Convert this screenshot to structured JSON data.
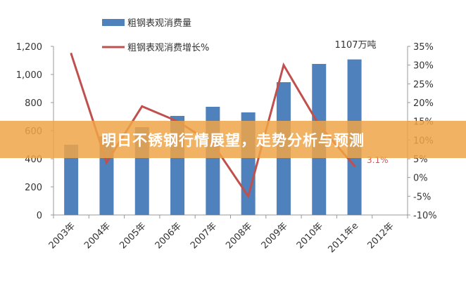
{
  "banner": {
    "title": "明日不锈钢行情展望，走势分析与预测"
  },
  "colors": {
    "bar": "#4f81bd",
    "line": "#c0504d",
    "banner": "#f0a448"
  },
  "chart_data": {
    "type": "bar+line",
    "categories": [
      "2003年",
      "2004年",
      "2005年",
      "2006年",
      "2007年",
      "2008年",
      "2009年",
      "2010年",
      "2011年e",
      "2012年"
    ],
    "series": [
      {
        "name": "粗钢表观消费量",
        "type": "bar",
        "axis": "left",
        "values": [
          500,
          560,
          625,
          705,
          770,
          730,
          945,
          1075,
          1107,
          null
        ]
      },
      {
        "name": "粗钢表观消费增长%",
        "type": "line",
        "axis": "right",
        "values": [
          33,
          4,
          19,
          15,
          9,
          -5,
          30,
          14,
          3.1,
          null
        ]
      }
    ],
    "left_axis": {
      "ylim": [
        0,
        1200
      ],
      "ticks": [
        "0",
        "200",
        "400",
        "600",
        "800",
        "1,000",
        "1,200"
      ]
    },
    "right_axis": {
      "ylim": [
        -10,
        35
      ],
      "ticks": [
        "-10%",
        "-5%",
        "0%",
        "5%",
        "10%",
        "15%",
        "20%",
        "25%",
        "30%",
        "35%"
      ]
    },
    "annotations": [
      {
        "text": "1107万吨"
      },
      {
        "text": "3.1%"
      }
    ],
    "legend": "top",
    "grid": false
  }
}
